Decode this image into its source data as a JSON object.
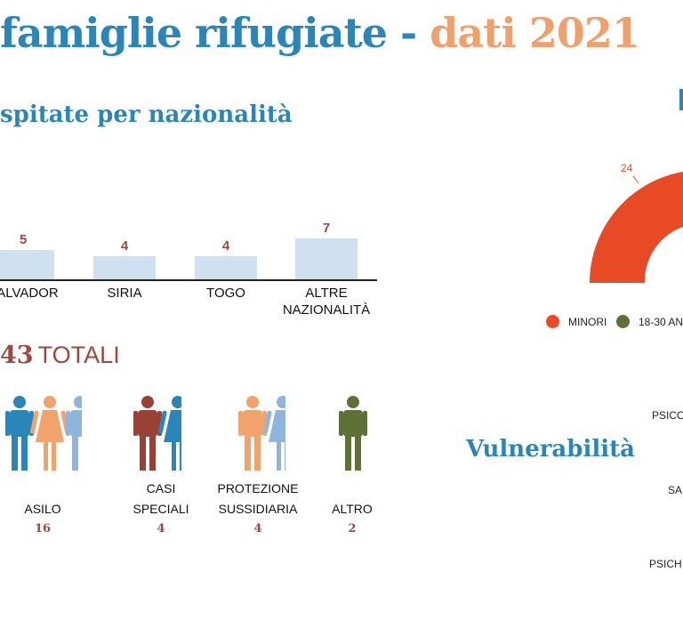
{
  "header": {
    "title_part1": "famiglie rifugiate",
    "separator": " - ",
    "title_part2": "dati 2021"
  },
  "nationality_section": {
    "title": "spitate per nazionalità"
  },
  "chart_data": [
    {
      "type": "bar",
      "title": "",
      "categories": [
        "SALVADOR",
        "SIRIA",
        "TOGO",
        "ALTRE NAZIONALITÀ"
      ],
      "category_lines": [
        [
          "SALVADOR"
        ],
        [
          "SIRIA"
        ],
        [
          "TOGO"
        ],
        [
          "ALTRE",
          "NAZIONALITÀ"
        ]
      ],
      "values": [
        5,
        4,
        4,
        7
      ],
      "value_labels": [
        "5",
        "4",
        "4",
        "7"
      ],
      "color": "#cfe0f1",
      "label_color": "#a0463c"
    },
    {
      "type": "pie",
      "variant": "semi-donut",
      "visible_values": [
        24
      ],
      "visible_labels": [
        "24"
      ],
      "legend": [
        "MINORI",
        "18-30 AN"
      ],
      "colors": [
        "#e84a26",
        "#5e7036"
      ]
    }
  ],
  "totals": {
    "number": "43",
    "label": "TOTALI"
  },
  "status_categories": [
    {
      "lines": [
        "ASILO"
      ],
      "count": "16",
      "icon": "family-icon"
    },
    {
      "lines": [
        "CASI",
        "SPECIALI"
      ],
      "count": "4",
      "icon": "couple-icon"
    },
    {
      "lines": [
        "PROTEZIONE",
        "SUSSIDIARIA"
      ],
      "count": "4",
      "icon": "couple-icon"
    },
    {
      "lines": [
        "ALTRO"
      ],
      "count": "2",
      "icon": "person-icon"
    }
  ],
  "vulnerability": {
    "title": "Vulnerabilità",
    "categories": [
      "PSICO",
      "SA",
      "PSICH"
    ]
  },
  "colors": {
    "blue": "#2a86b8",
    "orange": "#f0a06a",
    "red_text": "#a0463c",
    "bar": "#cfe0f1",
    "icon_blue": "#2a86b8",
    "icon_orange": "#f2a36c",
    "icon_lightblue": "#8fb5dc",
    "icon_red": "#9a4136",
    "icon_green": "#5e7036",
    "arc_red": "#e84a26",
    "legend_green": "#5e7036"
  }
}
